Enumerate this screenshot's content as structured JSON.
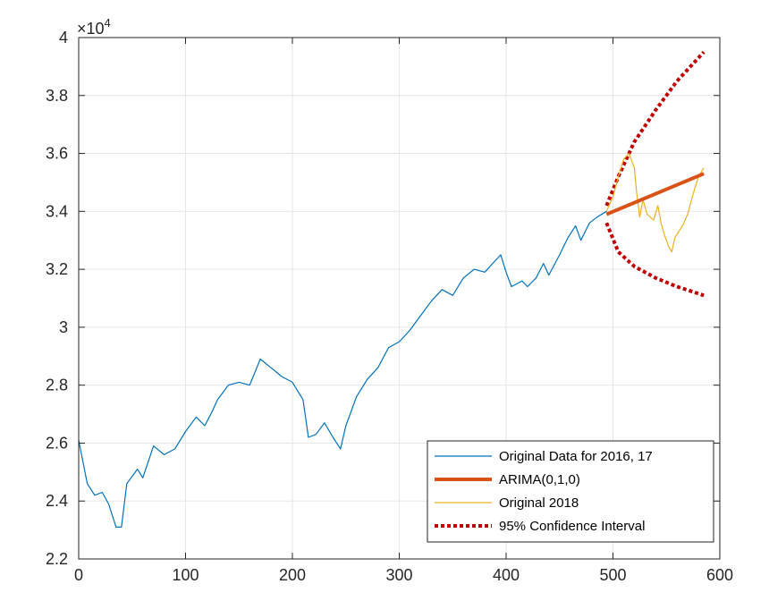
{
  "chart_data": {
    "type": "line",
    "title": "",
    "xlabel": "",
    "ylabel": "",
    "xlim": [
      0,
      600
    ],
    "ylim": [
      22000,
      40000
    ],
    "x_ticks": [
      0,
      100,
      200,
      300,
      400,
      500,
      600
    ],
    "x_tick_labels": [
      "0",
      "100",
      "200",
      "300",
      "400",
      "500",
      "600"
    ],
    "y_ticks": [
      22000,
      24000,
      26000,
      28000,
      30000,
      32000,
      34000,
      36000,
      38000,
      40000
    ],
    "y_tick_labels": [
      "2.2",
      "2.4",
      "2.6",
      "2.8",
      "3",
      "3.2",
      "3.4",
      "3.6",
      "3.8",
      "4"
    ],
    "y_exponent_base": "×10",
    "y_exponent_power": "4",
    "grid": true,
    "legend_position": "bottom-right",
    "colors": {
      "original": "#0072BD",
      "arima": "#D95319",
      "orig2018": "#EDB120",
      "ci": "#C00000"
    },
    "series": [
      {
        "name": "Original Data for 2016, 17",
        "style": "solid-thin",
        "points": [
          [
            0,
            26100
          ],
          [
            8,
            24600
          ],
          [
            15,
            24200
          ],
          [
            22,
            24300
          ],
          [
            28,
            23900
          ],
          [
            35,
            23100
          ],
          [
            40,
            23100
          ],
          [
            45,
            24600
          ],
          [
            55,
            25100
          ],
          [
            60,
            24800
          ],
          [
            70,
            25900
          ],
          [
            80,
            25600
          ],
          [
            90,
            25800
          ],
          [
            100,
            26400
          ],
          [
            110,
            26900
          ],
          [
            118,
            26600
          ],
          [
            125,
            27100
          ],
          [
            130,
            27500
          ],
          [
            140,
            28000
          ],
          [
            150,
            28100
          ],
          [
            160,
            28000
          ],
          [
            170,
            28900
          ],
          [
            180,
            28600
          ],
          [
            190,
            28300
          ],
          [
            200,
            28100
          ],
          [
            210,
            27500
          ],
          [
            215,
            26200
          ],
          [
            222,
            26300
          ],
          [
            230,
            26700
          ],
          [
            238,
            26200
          ],
          [
            245,
            25800
          ],
          [
            250,
            26600
          ],
          [
            260,
            27600
          ],
          [
            270,
            28200
          ],
          [
            280,
            28600
          ],
          [
            290,
            29300
          ],
          [
            300,
            29500
          ],
          [
            310,
            29900
          ],
          [
            320,
            30400
          ],
          [
            330,
            30900
          ],
          [
            340,
            31300
          ],
          [
            350,
            31100
          ],
          [
            360,
            31700
          ],
          [
            370,
            32000
          ],
          [
            380,
            31900
          ],
          [
            390,
            32300
          ],
          [
            395,
            32500
          ],
          [
            400,
            31900
          ],
          [
            405,
            31400
          ],
          [
            415,
            31600
          ],
          [
            420,
            31400
          ],
          [
            428,
            31700
          ],
          [
            435,
            32200
          ],
          [
            440,
            31800
          ],
          [
            450,
            32500
          ],
          [
            458,
            33100
          ],
          [
            465,
            33500
          ],
          [
            470,
            33000
          ],
          [
            478,
            33600
          ],
          [
            485,
            33800
          ],
          [
            494,
            34000
          ]
        ]
      },
      {
        "name": "ARIMA(0,1,0)",
        "style": "solid-thick",
        "points": [
          [
            494,
            33900
          ],
          [
            585,
            35300
          ]
        ]
      },
      {
        "name": "Original 2018",
        "style": "solid-thin",
        "points": [
          [
            494,
            34000
          ],
          [
            500,
            34500
          ],
          [
            505,
            35200
          ],
          [
            510,
            35800
          ],
          [
            515,
            36000
          ],
          [
            520,
            35500
          ],
          [
            522,
            34700
          ],
          [
            525,
            33800
          ],
          [
            528,
            34400
          ],
          [
            532,
            33900
          ],
          [
            538,
            33700
          ],
          [
            542,
            34200
          ],
          [
            545,
            33600
          ],
          [
            548,
            33200
          ],
          [
            552,
            32800
          ],
          [
            555,
            32600
          ],
          [
            558,
            33100
          ],
          [
            565,
            33500
          ],
          [
            570,
            33900
          ],
          [
            575,
            34600
          ],
          [
            580,
            35200
          ],
          [
            585,
            35500
          ]
        ]
      },
      {
        "name": "95% Confidence Interval",
        "style": "dotted",
        "upper": [
          [
            494,
            34200
          ],
          [
            505,
            35200
          ],
          [
            520,
            36400
          ],
          [
            540,
            37500
          ],
          [
            560,
            38500
          ],
          [
            585,
            39500
          ]
        ],
        "lower": [
          [
            494,
            33600
          ],
          [
            505,
            32600
          ],
          [
            520,
            32100
          ],
          [
            540,
            31700
          ],
          [
            560,
            31400
          ],
          [
            585,
            31100
          ]
        ]
      }
    ]
  }
}
